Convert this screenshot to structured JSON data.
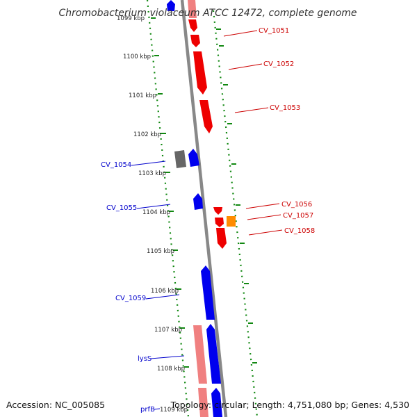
{
  "title": "Chromobacterium violaceum ATCC 12472, complete genome",
  "footer": {
    "accession": "Accession: NC_005085",
    "summary": "Topology: circular; Length: 4,751,080 bp; Genes: 4,530"
  },
  "colors": {
    "forward_strand": "#ee0000",
    "forward_light": "#f08080",
    "reverse_strand": "#0000ee",
    "orange_gene": "#ff8c00",
    "gray_gene": "#666666",
    "backbone": "#888888",
    "tick_dots": "#118811",
    "label_red": "#cc0000",
    "label_blue": "#0000cc"
  },
  "ticks": [
    "1099 kbp",
    "1100 kbp",
    "1101 kbp",
    "1102 kbp",
    "1103 kbp",
    "1104 kbp",
    "1105 kbp",
    "1106 kbp",
    "1107 kbp",
    "1108 kbp",
    "1109 kbp"
  ],
  "forward_labels": [
    "CV_1051",
    "CV_1052",
    "CV_1053",
    "CV_1056",
    "CV_1057",
    "CV_1058"
  ],
  "reverse_labels": [
    "CV_1054",
    "CV_1055",
    "CV_1059",
    "lysS",
    "prfB"
  ]
}
